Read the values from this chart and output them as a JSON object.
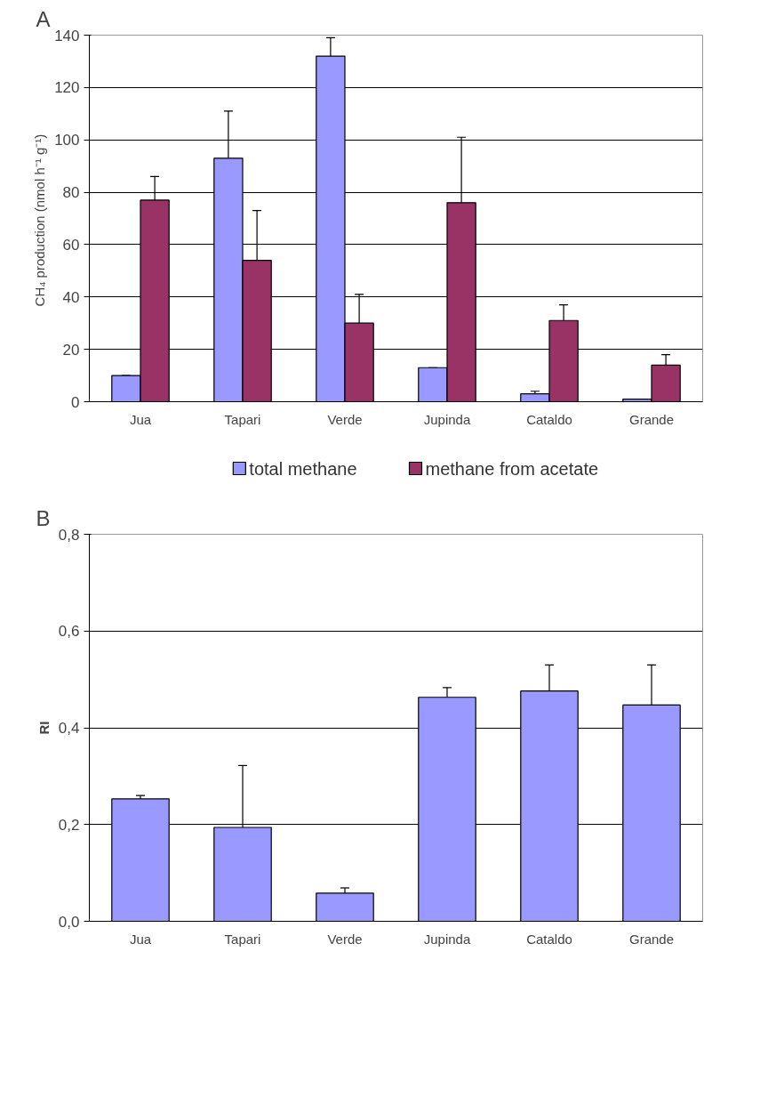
{
  "chart_data": [
    {
      "type": "bar",
      "title": "A",
      "ylabel": "CH₄ production (nmol  h⁻¹ g⁻¹)",
      "categories": [
        "Jua",
        "Tapari",
        "Verde",
        "Jupinda",
        "Cataldo",
        "Grande"
      ],
      "series": [
        {
          "name": "total methane",
          "color": "#9999ff",
          "values": [
            10,
            93,
            132,
            13,
            3,
            1
          ],
          "errors": [
            [
              10,
              10
            ],
            [
              93,
              111
            ],
            [
              132,
              139
            ],
            [
              13,
              13
            ],
            [
              3,
              4
            ],
            [
              1,
              1
            ]
          ]
        },
        {
          "name": "methane from acetate",
          "color": "#993366",
          "values": [
            77,
            54,
            30,
            76,
            31,
            14
          ],
          "errors": [
            [
              77,
              86
            ],
            [
              54,
              73
            ],
            [
              30,
              41
            ],
            [
              76,
              101
            ],
            [
              31,
              37
            ],
            [
              14,
              18
            ]
          ]
        }
      ],
      "ylim": [
        0,
        140
      ],
      "yticks": [
        0,
        20,
        40,
        60,
        80,
        100,
        120,
        140
      ],
      "grid": "y",
      "legend": "bottom"
    },
    {
      "type": "bar",
      "title": "B",
      "ylabel": "RI",
      "categories": [
        "Jua",
        "Tapari",
        "Verde",
        "Jupinda",
        "Cataldo",
        "Grande"
      ],
      "series": [
        {
          "color": "#9999ff",
          "values": [
            0.253,
            0.194,
            0.058,
            0.463,
            0.476,
            0.447
          ],
          "errors": [
            [
              0.253,
              0.26
            ],
            [
              0.194,
              0.322
            ],
            [
              0.058,
              0.069
            ],
            [
              0.463,
              0.483
            ],
            [
              0.476,
              0.53
            ],
            [
              0.447,
              0.53
            ]
          ]
        }
      ],
      "ylim": [
        0,
        0.8
      ],
      "yticks": [
        {
          "value": 0,
          "label": "0,0"
        },
        {
          "value": 0.2,
          "label": "0,2"
        },
        {
          "value": 0.4,
          "label": "0,4"
        },
        {
          "value": 0.6,
          "label": "0,6"
        },
        {
          "value": 0.8,
          "label": "0,8"
        }
      ],
      "grid": "y"
    }
  ]
}
